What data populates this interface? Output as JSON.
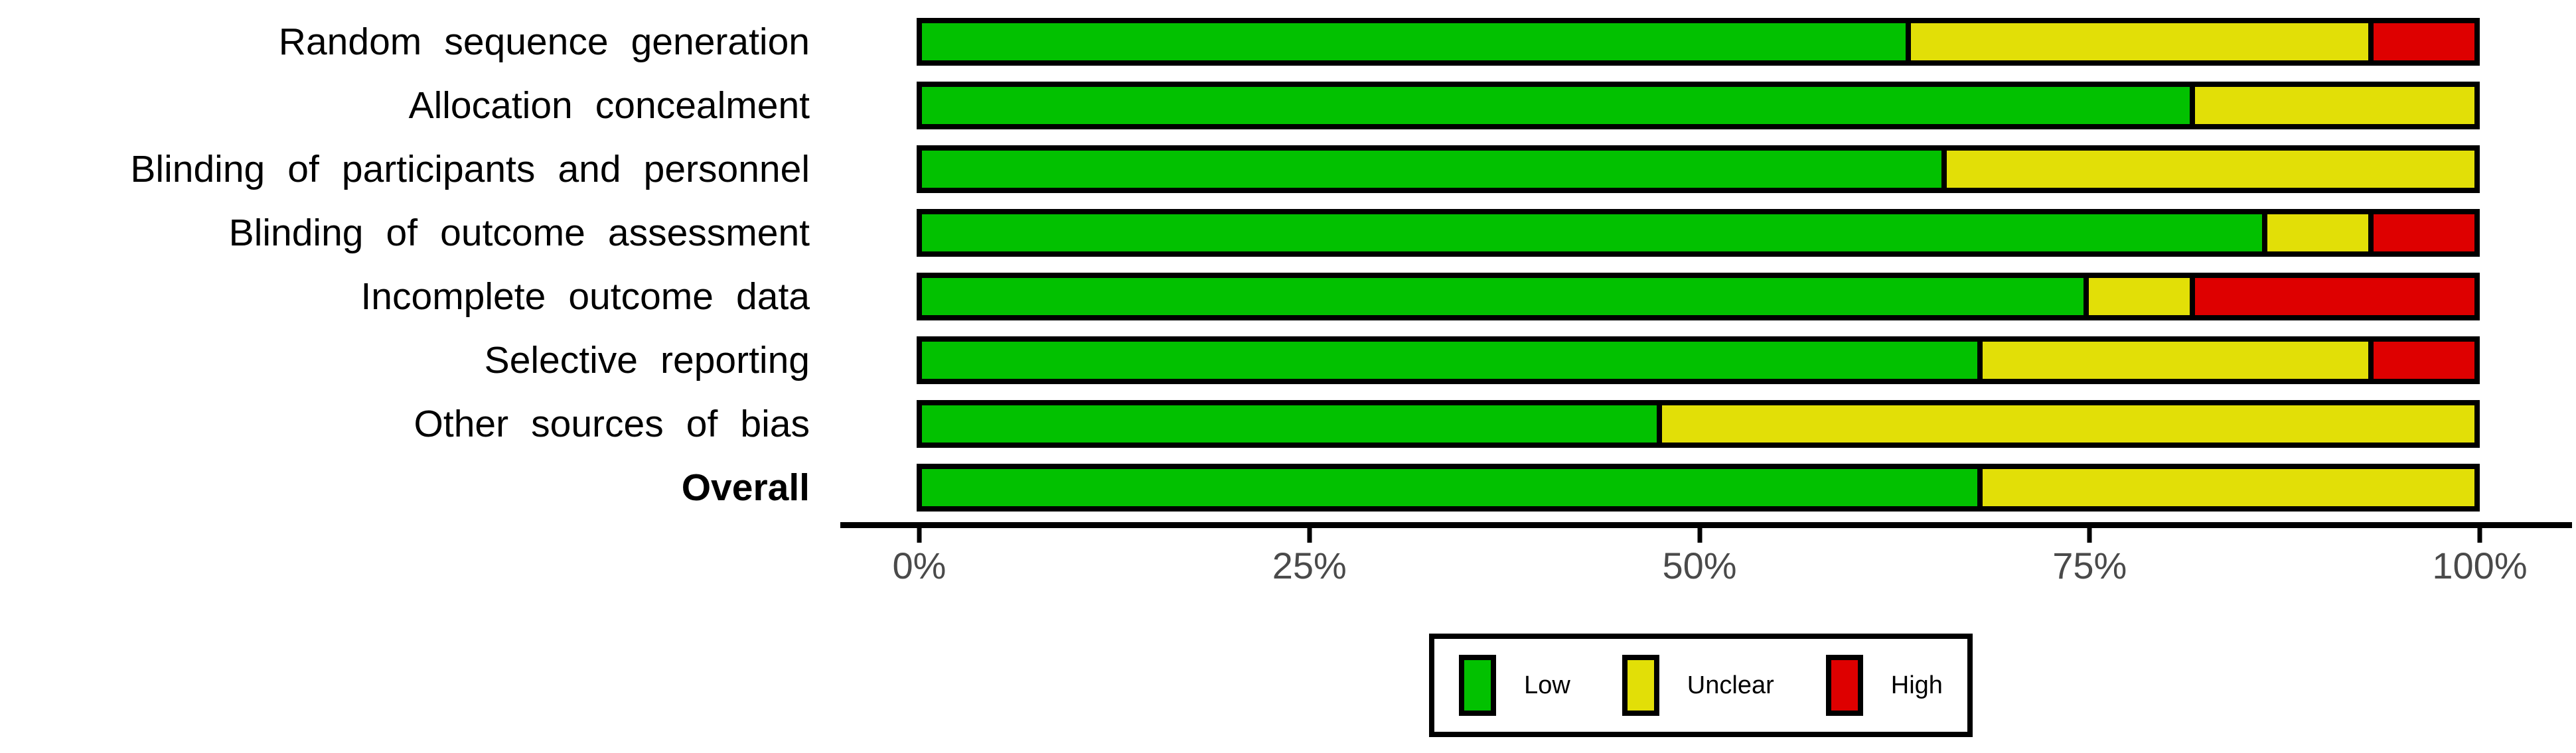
{
  "chart_data": {
    "type": "bar",
    "orientation": "horizontal",
    "stacked": true,
    "unit": "percent",
    "title": "",
    "xlabel": "",
    "ylabel": "",
    "xlim": [
      0,
      100
    ],
    "x_tick_values": [
      0,
      25,
      50,
      75,
      100
    ],
    "x_tick_labels": [
      "0%",
      "25%",
      "50%",
      "75%",
      "100%"
    ],
    "grid": false,
    "legend_position": "bottom",
    "categories": [
      {
        "label": "Random sequence generation",
        "bold": false
      },
      {
        "label": "Allocation concealment",
        "bold": false
      },
      {
        "label": "Blinding of participants and personnel",
        "bold": false
      },
      {
        "label": "Blinding of outcome assessment",
        "bold": false
      },
      {
        "label": "Incomplete outcome data",
        "bold": false
      },
      {
        "label": "Selective reporting",
        "bold": false
      },
      {
        "label": "Other sources of bias",
        "bold": false
      },
      {
        "label": "Overall",
        "bold": true
      }
    ],
    "series": [
      {
        "name": "Low",
        "color": "#02C100",
        "values": [
          63.6,
          81.8,
          65.9,
          86.4,
          75.0,
          68.2,
          47.7,
          68.2
        ]
      },
      {
        "name": "Unclear",
        "color": "#E2DF07",
        "values": [
          29.6,
          18.2,
          34.1,
          6.8,
          6.8,
          25.0,
          52.3,
          31.8
        ]
      },
      {
        "name": "High",
        "color": "#DE0000",
        "values": [
          6.8,
          0,
          0,
          6.8,
          18.2,
          6.8,
          0,
          0
        ]
      }
    ]
  },
  "colors": {
    "bar_border": "#000000",
    "axis": "#000000",
    "tick_text": "#4a4a4a",
    "background": "#ffffff"
  }
}
